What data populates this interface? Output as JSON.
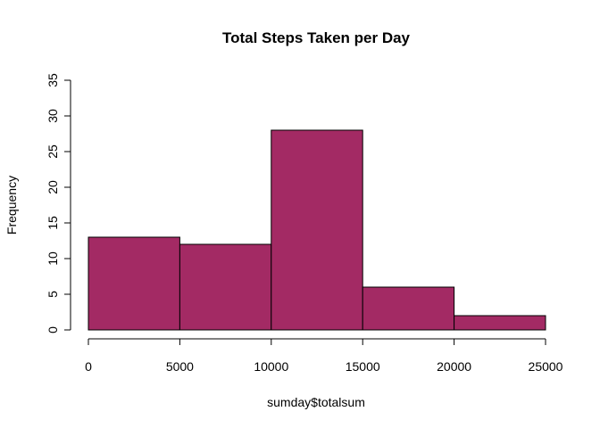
{
  "chart_data": {
    "type": "bar",
    "title": "Total Steps Taken per Day",
    "xlabel": "sumday$totalsum",
    "ylabel": "Frequency",
    "bins": [
      {
        "from": 0,
        "to": 5000,
        "count": 13
      },
      {
        "from": 5000,
        "to": 10000,
        "count": 12
      },
      {
        "from": 10000,
        "to": 15000,
        "count": 28
      },
      {
        "from": 15000,
        "to": 20000,
        "count": 6
      },
      {
        "from": 20000,
        "to": 25000,
        "count": 2
      }
    ],
    "xlim": [
      0,
      25000
    ],
    "ylim": [
      0,
      35
    ],
    "xticks": [
      0,
      5000,
      10000,
      15000,
      20000,
      25000
    ],
    "yticks": [
      0,
      5,
      10,
      15,
      20,
      25,
      30,
      35
    ],
    "bar_color": "#A32A64",
    "grid": false,
    "legend": "none"
  }
}
